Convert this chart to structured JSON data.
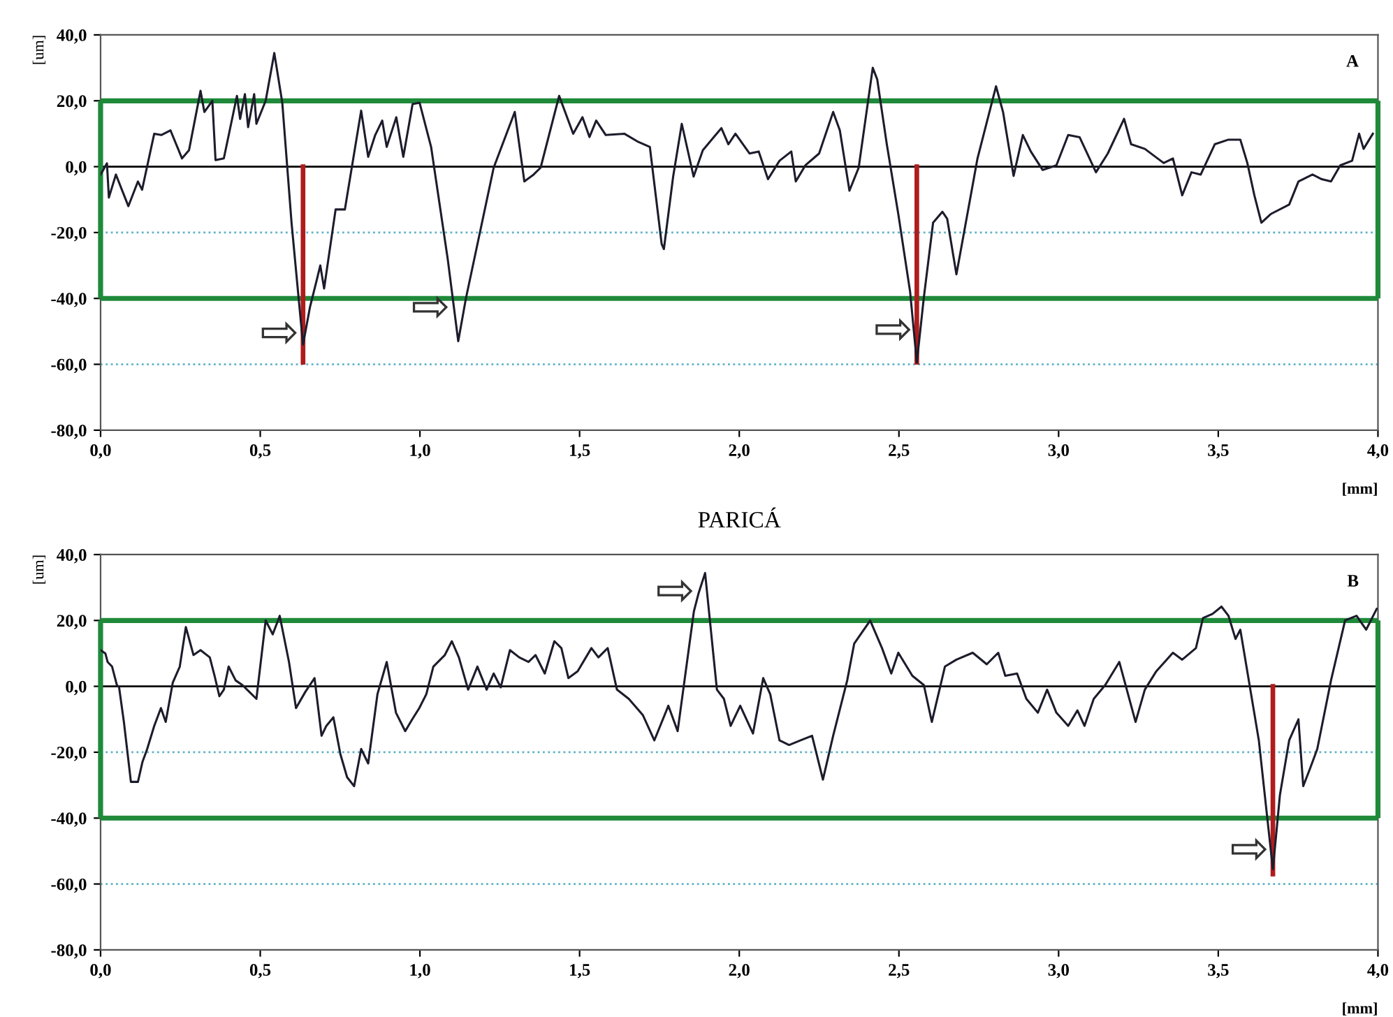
{
  "chart_data": [
    {
      "type": "line",
      "xlabel": "[mm]",
      "ylabel": "[um]",
      "xlim": [
        0,
        4
      ],
      "xticks": [
        {
          "value": 0,
          "label": "0,0"
        },
        {
          "value": 0.5,
          "label": "0,5"
        },
        {
          "value": 1,
          "label": "1,0"
        },
        {
          "value": 1.5,
          "label": "1,5"
        },
        {
          "value": 2,
          "label": "2,0"
        },
        {
          "value": 2.5,
          "label": "2,5"
        },
        {
          "value": 3,
          "label": "3,0"
        },
        {
          "value": 3.5,
          "label": "3,5"
        },
        {
          "value": 4,
          "label": "4,0"
        }
      ],
      "ylim": [
        -80,
        40
      ],
      "yticks": [
        {
          "value": -80,
          "label": "-80,0"
        },
        {
          "value": -60,
          "label": "-60,0"
        },
        {
          "value": -40,
          "label": "-40,0"
        },
        {
          "value": -20,
          "label": "-20,0"
        },
        {
          "value": 0,
          "label": "0,0"
        },
        {
          "value": 20,
          "label": "20,0"
        },
        {
          "value": 40,
          "label": "40,0"
        }
      ],
      "series": [
        {
          "color": "#1c1c2c",
          "x": [
            0,
            0.02,
            0.026,
            0.048,
            0.087,
            0.117,
            0.13,
            0.168,
            0.19,
            0.219,
            0.255,
            0.277,
            0.313,
            0.325,
            0.35,
            0.36,
            0.386,
            0.427,
            0.437,
            0.452,
            0.462,
            0.481,
            0.488,
            0.517,
            0.544,
            0.569,
            0.598,
            0.62,
            0.634,
            0.656,
            0.678,
            0.688,
            0.7,
            0.736,
            0.765,
            0.816,
            0.838,
            0.86,
            0.882,
            0.896,
            0.926,
            0.948,
            0.977,
            0.999,
            1.035,
            1.087,
            1.12,
            1.144,
            1.231,
            1.297,
            1.327,
            1.356,
            1.378,
            1.436,
            1.48,
            1.509,
            1.531,
            1.552,
            1.582,
            1.64,
            1.684,
            1.72,
            1.757,
            1.764,
            1.793,
            1.82,
            1.857,
            1.886,
            1.944,
            1.966,
            1.988,
            2.032,
            2.061,
            2.09,
            2.126,
            2.163,
            2.177,
            2.207,
            2.25,
            2.294,
            2.315,
            2.345,
            2.374,
            2.418,
            2.432,
            2.462,
            2.498,
            2.535,
            2.556,
            2.578,
            2.607,
            2.636,
            2.651,
            2.68,
            2.746,
            2.804,
            2.826,
            2.859,
            2.888,
            2.913,
            2.95,
            2.993,
            3.03,
            3.066,
            3.117,
            3.154,
            3.205,
            3.227,
            3.27,
            3.329,
            3.358,
            3.387,
            3.416,
            3.445,
            3.489,
            3.532,
            3.569,
            3.591,
            3.613,
            3.635,
            3.664,
            3.722,
            3.751,
            3.795,
            3.824,
            3.853,
            3.882,
            3.919,
            3.941,
            3.955,
            3.984
          ],
          "values": [
            -2.4,
            1,
            -9.4,
            -2.4,
            -12,
            -4.5,
            -7,
            10,
            9.6,
            11,
            2.5,
            5,
            23,
            16.6,
            20,
            2,
            2.5,
            21.5,
            14.5,
            22,
            12,
            22,
            13,
            20,
            34.5,
            19.4,
            -17,
            -39.7,
            -54,
            -42.5,
            -34,
            -30,
            -37,
            -13,
            -13,
            17,
            3,
            9.6,
            14,
            6,
            15,
            3,
            19,
            19.4,
            6,
            -28,
            -53,
            -40,
            -0.3,
            16.6,
            -4.5,
            -2.4,
            -0.3,
            21.5,
            10,
            15,
            9,
            14,
            9.6,
            10,
            7.5,
            6,
            -23.5,
            -25,
            -3,
            13,
            -3,
            5,
            11.7,
            6.8,
            10,
            4,
            4.6,
            -3.8,
            1.8,
            4.6,
            -4.5,
            0.4,
            4,
            16.6,
            11,
            -7.3,
            -0.3,
            30,
            26.5,
            6.8,
            -14.4,
            -38,
            -59.4,
            -39.7,
            -17,
            -13.7,
            -15.8,
            -32.7,
            2.5,
            24.4,
            16.6,
            -2.8,
            9.6,
            4.6,
            -1,
            0.4,
            9.6,
            8.9,
            -1.7,
            4,
            14.5,
            6.8,
            5.4,
            1.1,
            2.5,
            -8.7,
            -1.7,
            -2.4,
            6.8,
            8.2,
            8.2,
            1.1,
            -8.7,
            -17,
            -14.4,
            -11.5,
            -4.5,
            -2.4,
            -3.8,
            -4.5,
            0.4,
            1.8,
            10,
            5.4,
            10
          ]
        },
        {
          "color": "#b01c1c",
          "x": [
            0.634,
            0.634
          ],
          "values": [
            0,
            -59.4
          ]
        },
        {
          "color": "#b01c1c",
          "x": [
            2.556,
            2.556
          ],
          "values": [
            0,
            -59.4
          ]
        }
      ],
      "ref_lines": [
        {
          "axis": "y",
          "value": 0,
          "color": "#000000",
          "line_style": "solid"
        },
        {
          "axis": "y",
          "value": -20,
          "color": "#5fb3c8",
          "line_style": "dotted"
        },
        {
          "axis": "y",
          "value": -60,
          "color": "#5fb3c8",
          "line_style": "dotted"
        },
        {
          "axis": "y",
          "value": 20,
          "color": "#1f8a3a",
          "line_style": "solid"
        },
        {
          "axis": "y",
          "value": -40,
          "color": "#1f8a3a",
          "line_style": "solid"
        },
        {
          "axis": "x",
          "value": 0,
          "color": "#1f8a3a",
          "line_style": "solid"
        },
        {
          "axis": "x",
          "value": 4,
          "color": "#1f8a3a",
          "line_style": "solid"
        }
      ],
      "annotations": [
        "A",
        {
          "text": "⇨",
          "x": 0.634,
          "y": -51
        },
        {
          "text": "⇨",
          "x": 1.107,
          "y": -43.2
        },
        {
          "text": "⇨",
          "x": 2.556,
          "y": -50
        }
      ]
    },
    {
      "type": "line",
      "title": "PARICÁ",
      "xlabel": "[mm]",
      "ylabel": "[um]",
      "xlim": [
        0,
        4
      ],
      "xticks": [
        {
          "value": 0,
          "label": "0,0"
        },
        {
          "value": 0.5,
          "label": "0,5"
        },
        {
          "value": 1,
          "label": "1,0"
        },
        {
          "value": 1.5,
          "label": "1,5"
        },
        {
          "value": 2,
          "label": "2,0"
        },
        {
          "value": 2.5,
          "label": "2,5"
        },
        {
          "value": 3,
          "label": "3,0"
        },
        {
          "value": 3.5,
          "label": "3,5"
        },
        {
          "value": 4,
          "label": "4,0"
        }
      ],
      "ylim": [
        -80,
        40
      ],
      "yticks": [
        {
          "value": -80,
          "label": "-80,0"
        },
        {
          "value": -60,
          "label": "-60,0"
        },
        {
          "value": -40,
          "label": "-40,0"
        },
        {
          "value": -20,
          "label": "-20,0"
        },
        {
          "value": 0,
          "label": "0,0"
        },
        {
          "value": 20,
          "label": "20,0"
        },
        {
          "value": 40,
          "label": "40,0"
        }
      ],
      "series": [
        {
          "color": "#1c1c2c",
          "x": [
            0,
            0.015,
            0.022,
            0.036,
            0.051,
            0.058,
            0.073,
            0.095,
            0.117,
            0.131,
            0.146,
            0.168,
            0.189,
            0.204,
            0.226,
            0.248,
            0.267,
            0.291,
            0.313,
            0.342,
            0.357,
            0.372,
            0.386,
            0.401,
            0.423,
            0.444,
            0.466,
            0.488,
            0.517,
            0.539,
            0.561,
            0.59,
            0.612,
            0.641,
            0.67,
            0.692,
            0.707,
            0.729,
            0.751,
            0.772,
            0.794,
            0.816,
            0.838,
            0.867,
            0.896,
            0.925,
            0.954,
            0.976,
            0.998,
            1.02,
            1.042,
            1.078,
            1.1,
            1.122,
            1.151,
            1.18,
            1.209,
            1.231,
            1.253,
            1.282,
            1.311,
            1.34,
            1.362,
            1.391,
            1.421,
            1.443,
            1.465,
            1.494,
            1.537,
            1.559,
            1.588,
            1.617,
            1.654,
            1.698,
            1.734,
            1.778,
            1.807,
            1.858,
            1.873,
            1.893,
            1.93,
            1.952,
            1.973,
            2.003,
            2.043,
            2.075,
            2.097,
            2.126,
            2.156,
            2.192,
            2.228,
            2.262,
            2.294,
            2.338,
            2.36,
            2.41,
            2.447,
            2.476,
            2.498,
            2.542,
            2.578,
            2.603,
            2.644,
            2.68,
            2.731,
            2.775,
            2.811,
            2.833,
            2.87,
            2.899,
            2.935,
            2.964,
            2.993,
            3.03,
            3.059,
            3.081,
            3.11,
            3.146,
            3.19,
            3.241,
            3.27,
            3.306,
            3.358,
            3.387,
            3.43,
            3.452,
            3.482,
            3.51,
            3.532,
            3.554,
            3.569,
            3.598,
            3.627,
            3.649,
            3.671,
            3.693,
            3.722,
            3.751,
            3.766,
            3.788,
            3.81,
            3.853,
            3.897,
            3.933,
            3.963,
            3.996
          ],
          "values": [
            11,
            10,
            7.4,
            6,
            0.4,
            -0.3,
            -10.8,
            -29,
            -29,
            -23,
            -19,
            -12,
            -6.6,
            -10.8,
            1.1,
            6,
            18,
            9.5,
            11,
            8.8,
            3.2,
            -3,
            -1,
            6,
            1.8,
            0.4,
            -1.7,
            -3.8,
            20,
            15.8,
            21.4,
            7.4,
            -6.6,
            -1.7,
            2.5,
            -15,
            -12,
            -9.4,
            -20.6,
            -27.6,
            -30.3,
            -19,
            -23.4,
            -2.4,
            7.4,
            -8,
            -13.6,
            -10,
            -6.6,
            -2.4,
            6,
            9.5,
            13.7,
            8.8,
            -1,
            6,
            -1,
            3.9,
            -0.3,
            11,
            8.8,
            7.4,
            9.5,
            3.9,
            13.7,
            11.6,
            2.5,
            4.6,
            11.6,
            8.8,
            11.6,
            -1,
            -3.8,
            -8.7,
            -16.4,
            -5.9,
            -13.6,
            22.8,
            28.4,
            34.4,
            -1,
            -3.8,
            -12,
            -5.9,
            -14.3,
            2.5,
            -2.4,
            -16.4,
            -17.8,
            -16.4,
            -15,
            -28.3,
            -15,
            1.8,
            13,
            20,
            11.6,
            3.9,
            10.2,
            3.2,
            0.4,
            -10.8,
            6,
            8.1,
            10.2,
            6.7,
            10.2,
            3.2,
            3.9,
            -3.8,
            -8,
            -1,
            -8,
            -12,
            -7.3,
            -12,
            -3.8,
            0.4,
            7.4,
            -10.8,
            -1,
            4.6,
            10.2,
            8.1,
            11.6,
            20.7,
            22,
            24.2,
            21.4,
            14.4,
            17.2,
            0.4,
            -16.4,
            -36,
            -55.5,
            -33,
            -16.4,
            -10,
            -30.3,
            -24.8,
            -19,
            1.8,
            20,
            21.4,
            17.2,
            23.5
          ]
        },
        {
          "color": "#b01c1c",
          "x": [
            3.671,
            3.671
          ],
          "values": [
            0,
            -57
          ]
        }
      ],
      "ref_lines": [
        {
          "axis": "y",
          "value": 0,
          "color": "#000000",
          "line_style": "solid"
        },
        {
          "axis": "y",
          "value": -20,
          "color": "#5fb3c8",
          "line_style": "dotted"
        },
        {
          "axis": "y",
          "value": -60,
          "color": "#5fb3c8",
          "line_style": "dotted"
        },
        {
          "axis": "y",
          "value": 20,
          "color": "#1f8a3a",
          "line_style": "solid"
        },
        {
          "axis": "y",
          "value": -40,
          "color": "#1f8a3a",
          "line_style": "solid"
        },
        {
          "axis": "x",
          "value": 0,
          "color": "#1f8a3a",
          "line_style": "solid"
        },
        {
          "axis": "x",
          "value": 4,
          "color": "#1f8a3a",
          "line_style": "solid"
        }
      ],
      "annotations": [
        "B",
        {
          "text": "⇨",
          "x": 1.873,
          "y": 28.4
        },
        {
          "text": "⇨",
          "x": 3.671,
          "y": -50
        }
      ]
    }
  ]
}
